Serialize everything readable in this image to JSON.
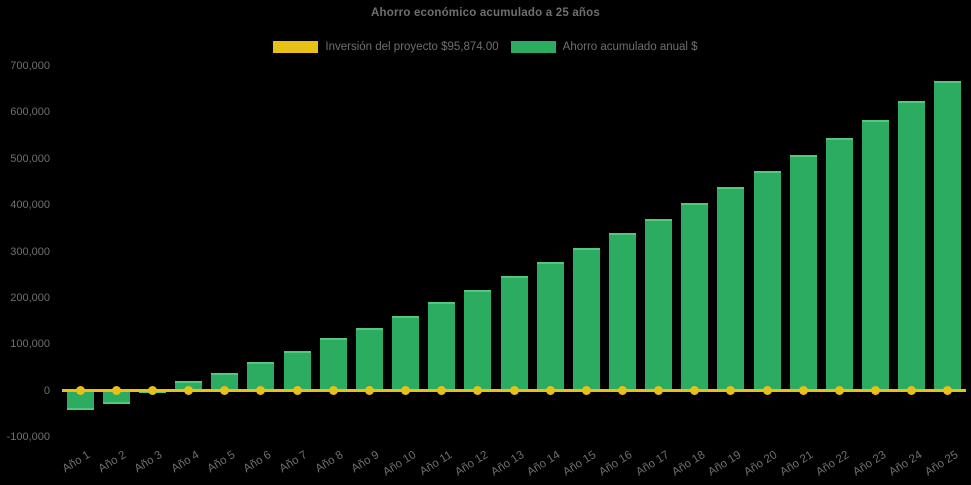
{
  "title": "Ahorro económico acumulado a 25 años",
  "legend": {
    "items": [
      {
        "label": "Inversión del proyecto $95,874.00",
        "color": "#e8c118"
      },
      {
        "label": "Ahorro acumulado anual $",
        "color": "#2bac60"
      }
    ]
  },
  "colors": {
    "background": "#000000",
    "bar_fill": "#2bac60",
    "bar_edge": "#4cc97d",
    "line": "#e8c118",
    "text": "#6f6f6f"
  },
  "chart_data": {
    "type": "bar",
    "title": "Ahorro económico acumulado a 25 años",
    "categories": [
      "Año 1",
      "Año 2",
      "Año 3",
      "Año 4",
      "Año 5",
      "Año 6",
      "Año 7",
      "Año 8",
      "Año 9",
      "Año 10",
      "Año 11",
      "Año 12",
      "Año 13",
      "Año 14",
      "Año 15",
      "Año 16",
      "Año 17",
      "Año 18",
      "Año 19",
      "Año 20",
      "Año 21",
      "Año 22",
      "Año 23",
      "Año 24",
      "Año 25"
    ],
    "series": [
      {
        "name": "Inversión del proyecto $95,874.00",
        "type": "line",
        "color": "#e8c118",
        "values": [
          0,
          0,
          0,
          0,
          0,
          0,
          0,
          0,
          0,
          0,
          0,
          0,
          0,
          0,
          0,
          0,
          0,
          0,
          0,
          0,
          0,
          0,
          0,
          0,
          0
        ]
      },
      {
        "name": "Ahorro acumulado anual $",
        "type": "bar",
        "color": "#2bac60",
        "values": [
          -42000,
          -28000,
          -3000,
          21000,
          39000,
          62000,
          86000,
          113000,
          136000,
          161000,
          192000,
          217000,
          247000,
          278000,
          307000,
          340000,
          370000,
          404000,
          439000,
          474000,
          509000,
          545000,
          584000,
          624000,
          667000
        ]
      }
    ],
    "xlabel": "",
    "ylabel": "",
    "ylim": [
      -100000,
      700000
    ],
    "ytick_step": 100000,
    "ytick_labels": [
      "700,000",
      "600,000",
      "500,000",
      "400,000",
      "300,000",
      "200,000",
      "100,000",
      "0",
      "-100,000"
    ],
    "grid": false,
    "legend_position": "top"
  }
}
